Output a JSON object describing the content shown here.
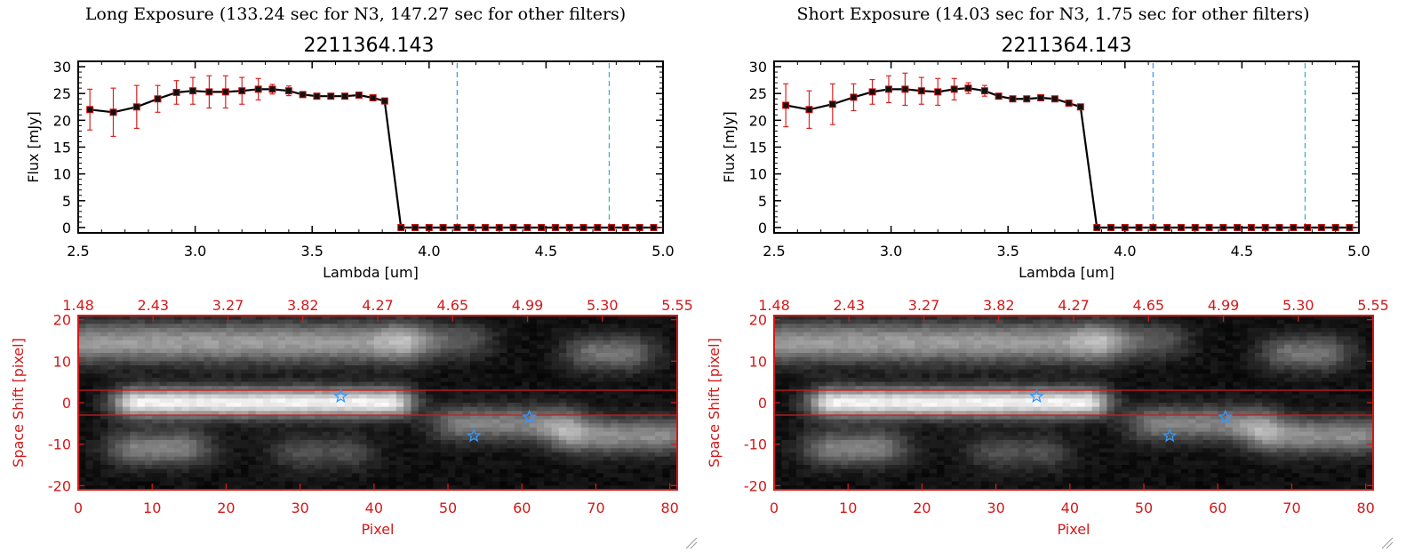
{
  "panels": [
    {
      "title": "Long Exposure (133.24 sec for N3, 147.27 sec for other filters)",
      "source_id": "2211364.143"
    },
    {
      "title": "Short Exposure (14.03 sec for N3, 1.75 sec for other filters)",
      "source_id": "2211364.143"
    }
  ],
  "colors": {
    "line": "#000000",
    "marker": "#cc1111",
    "errorbar": "#dd2222",
    "vline1": "#3399ee",
    "vline2": "#33aacc",
    "image_frame": "#d21a1a",
    "star_marker": "#3399ff"
  },
  "chart_data": [
    {
      "type": "line",
      "panel": "long",
      "xlabel": "Lambda [um]",
      "ylabel": "Flux [mJy]",
      "xlim": [
        2.5,
        5.0
      ],
      "ylim": [
        -1,
        31
      ],
      "xticks": [
        "2.5",
        "3.0",
        "3.5",
        "4.0",
        "4.5",
        "5.0"
      ],
      "yticks": [
        "0",
        "5",
        "10",
        "15",
        "20",
        "25",
        "30"
      ],
      "vlines": [
        4.12,
        4.77
      ],
      "x": [
        2.55,
        2.65,
        2.75,
        2.84,
        2.92,
        2.99,
        3.06,
        3.13,
        3.2,
        3.27,
        3.33,
        3.4,
        3.46,
        3.52,
        3.58,
        3.64,
        3.7,
        3.76,
        3.81,
        3.88,
        3.94,
        4.0,
        4.06,
        4.12,
        4.18,
        4.24,
        4.3,
        4.36,
        4.42,
        4.48,
        4.54,
        4.6,
        4.66,
        4.72,
        4.78,
        4.84,
        4.9,
        4.96
      ],
      "y": [
        22.0,
        21.5,
        22.5,
        24.0,
        25.2,
        25.5,
        25.3,
        25.3,
        25.5,
        25.8,
        25.8,
        25.5,
        24.8,
        24.5,
        24.5,
        24.5,
        24.7,
        24.2,
        23.6,
        0,
        0,
        0,
        0,
        0,
        0,
        0,
        0,
        0,
        0,
        0,
        0,
        0,
        0,
        0,
        0,
        0,
        0,
        0
      ],
      "yerr": [
        3.8,
        4.5,
        4.0,
        2.5,
        2.2,
        2.5,
        3.0,
        3.0,
        2.5,
        2.0,
        0.9,
        0.9,
        0,
        0,
        0,
        0,
        0,
        0,
        0,
        0,
        0,
        0,
        0,
        0,
        0,
        0,
        0,
        0,
        0,
        0,
        0,
        0,
        0,
        0,
        0,
        0,
        0,
        0
      ]
    },
    {
      "type": "line",
      "panel": "short",
      "xlabel": "Lambda [um]",
      "ylabel": "Flux [mJy]",
      "xlim": [
        2.5,
        5.0
      ],
      "ylim": [
        -1,
        31
      ],
      "xticks": [
        "2.5",
        "3.0",
        "3.5",
        "4.0",
        "4.5",
        "5.0"
      ],
      "yticks": [
        "0",
        "5",
        "10",
        "15",
        "20",
        "25",
        "30"
      ],
      "vlines": [
        4.12,
        4.77
      ],
      "x": [
        2.55,
        2.65,
        2.75,
        2.84,
        2.92,
        2.99,
        3.06,
        3.13,
        3.2,
        3.27,
        3.33,
        3.4,
        3.46,
        3.52,
        3.58,
        3.64,
        3.7,
        3.76,
        3.81,
        3.88,
        3.94,
        4.0,
        4.06,
        4.12,
        4.18,
        4.24,
        4.3,
        4.36,
        4.42,
        4.48,
        4.54,
        4.6,
        4.66,
        4.72,
        4.78,
        4.84,
        4.9,
        4.96
      ],
      "y": [
        22.8,
        22.0,
        23.0,
        24.3,
        25.3,
        25.8,
        25.8,
        25.5,
        25.3,
        25.8,
        26.0,
        25.5,
        24.5,
        24.0,
        24.0,
        24.2,
        24.0,
        23.2,
        22.5,
        0,
        0,
        0,
        0,
        0,
        0,
        0,
        0,
        0,
        0,
        0,
        0,
        0,
        0,
        0,
        0,
        0,
        0,
        0
      ],
      "yerr": [
        4.0,
        3.5,
        3.8,
        2.5,
        2.3,
        2.5,
        3.0,
        2.5,
        2.5,
        2.0,
        1.0,
        1.0,
        0,
        0,
        0,
        0,
        0,
        0,
        0,
        0,
        0,
        0,
        0,
        0,
        0,
        0,
        0,
        0,
        0,
        0,
        0,
        0,
        0,
        0,
        0,
        0,
        0,
        0
      ]
    },
    {
      "type": "heatmap",
      "panel": "long",
      "xlabel": "Pixel",
      "ylabel": "Space Shift [pixel]",
      "xlim": [
        0,
        81
      ],
      "ylim": [
        -21,
        21
      ],
      "xticks": [
        "0",
        "10",
        "20",
        "30",
        "40",
        "50",
        "60",
        "70",
        "80"
      ],
      "yticks": [
        "-20",
        "-10",
        "0",
        "10",
        "20"
      ],
      "top_ticks": [
        "1.48",
        "2.43",
        "3.27",
        "3.82",
        "4.27",
        "4.65",
        "4.99",
        "5.30",
        "5.55"
      ],
      "extraction_band": [
        -3,
        3
      ],
      "blobs": [
        {
          "x": [
            1,
            42
          ],
          "y": 14.5,
          "amp": 0.55,
          "w": 3.5
        },
        {
          "x": [
            8,
            42
          ],
          "y": 0,
          "amp": 0.9,
          "w": 2.5
        },
        {
          "x": [
            52,
            64
          ],
          "y": -5,
          "amp": 0.45,
          "w": 3
        },
        {
          "x": [
            68,
            79
          ],
          "y": -8,
          "amp": 0.5,
          "w": 3
        },
        {
          "x": [
            8,
            14
          ],
          "y": -11,
          "amp": 0.45,
          "w": 3
        },
        {
          "x": [
            46,
            52
          ],
          "y": 15,
          "amp": 0.3,
          "w": 3
        },
        {
          "x": [
            70,
            74
          ],
          "y": 12,
          "amp": 0.4,
          "w": 3
        },
        {
          "x": [
            30,
            36
          ],
          "y": -12,
          "amp": 0.25,
          "w": 3
        }
      ],
      "stars": [
        [
          35.5,
          1.5
        ],
        [
          53.5,
          -8
        ],
        [
          61,
          -3.5
        ]
      ]
    },
    {
      "type": "heatmap",
      "panel": "short",
      "xlabel": "Pixel",
      "ylabel": "Space Shift [pixel]",
      "xlim": [
        0,
        81
      ],
      "ylim": [
        -21,
        21
      ],
      "xticks": [
        "0",
        "10",
        "20",
        "30",
        "40",
        "50",
        "60",
        "70",
        "80"
      ],
      "yticks": [
        "-20",
        "-10",
        "0",
        "10",
        "20"
      ],
      "top_ticks": [
        "1.48",
        "2.43",
        "3.27",
        "3.82",
        "4.27",
        "4.65",
        "4.99",
        "5.30",
        "5.55"
      ],
      "extraction_band": [
        -3,
        3
      ],
      "blobs": [
        {
          "x": [
            1,
            42
          ],
          "y": 14.5,
          "amp": 0.55,
          "w": 3.5
        },
        {
          "x": [
            8,
            42
          ],
          "y": 0,
          "amp": 0.9,
          "w": 2.5
        },
        {
          "x": [
            52,
            64
          ],
          "y": -5,
          "amp": 0.45,
          "w": 3
        },
        {
          "x": [
            68,
            79
          ],
          "y": -8,
          "amp": 0.5,
          "w": 3
        },
        {
          "x": [
            8,
            14
          ],
          "y": -11,
          "amp": 0.45,
          "w": 3
        },
        {
          "x": [
            46,
            52
          ],
          "y": 15,
          "amp": 0.3,
          "w": 3
        },
        {
          "x": [
            70,
            74
          ],
          "y": 12,
          "amp": 0.4,
          "w": 3
        },
        {
          "x": [
            30,
            36
          ],
          "y": -12,
          "amp": 0.25,
          "w": 3
        }
      ],
      "stars": [
        [
          35.5,
          1.5
        ],
        [
          53.5,
          -8
        ],
        [
          61,
          -3.5
        ]
      ]
    }
  ]
}
